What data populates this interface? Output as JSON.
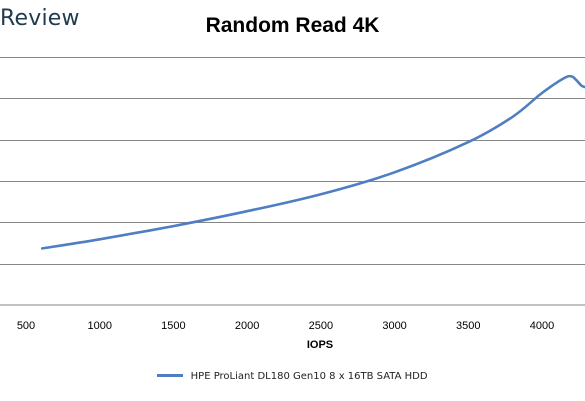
{
  "watermark": "Review",
  "chart_data": {
    "type": "line",
    "title": "Random Read 4K",
    "xlabel": "IOPS",
    "ylabel": "",
    "xlim": [
      500,
      4300
    ],
    "ylim": [
      0,
      6
    ],
    "x_ticks": [
      500,
      1000,
      1500,
      2000,
      2500,
      3000,
      3500,
      4000
    ],
    "y_gridlines": [
      1,
      2,
      3,
      4,
      5,
      6
    ],
    "grid": true,
    "legend_position": "bottom",
    "series": [
      {
        "name": "HPE ProLiant DL180 Gen10 8 x 16TB SATA HDD",
        "color": "#4f7ec2",
        "x": [
          610,
          1000,
          1500,
          2000,
          2500,
          3000,
          3500,
          3800,
          4000,
          4150,
          4200,
          4230,
          4270,
          4300
        ],
        "y": [
          1.37,
          1.59,
          1.91,
          2.27,
          2.68,
          3.21,
          3.94,
          4.55,
          5.13,
          5.49,
          5.53,
          5.45,
          5.3,
          5.27
        ]
      }
    ]
  }
}
